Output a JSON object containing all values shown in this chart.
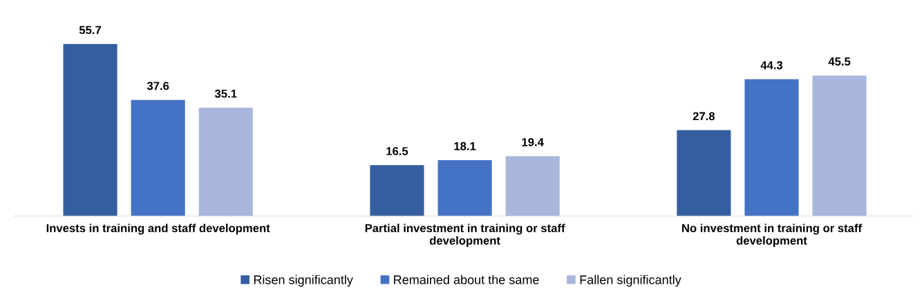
{
  "chart_data": {
    "type": "bar",
    "categories": [
      "Invests in training and staff development",
      "Partial investment in training or staff development",
      "No investment in training or staff development"
    ],
    "series": [
      {
        "name": "Risen significantly",
        "color": "#355ea0",
        "values": [
          55.7,
          16.5,
          27.8
        ]
      },
      {
        "name": "Remained about the same",
        "color": "#4472c4",
        "values": [
          37.6,
          18.1,
          44.3
        ]
      },
      {
        "name": "Fallen significantly",
        "color": "#a9b7dc",
        "values": [
          35.1,
          19.4,
          45.5
        ]
      }
    ],
    "data_labels": true,
    "legend": "bottom",
    "grid": false,
    "tick_labels": "x"
  }
}
